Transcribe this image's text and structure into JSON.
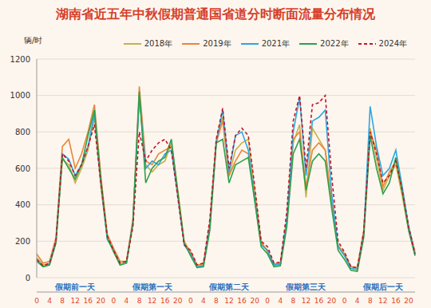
{
  "chart_data": {
    "type": "line",
    "title": "湖南省近五年中秋假期普通国省道分时断面流量分布情况",
    "ylabel": "辆/时",
    "x_groups": [
      "假期前一天",
      "假期第一天",
      "假期第二天",
      "假期第三天",
      "假期后一天"
    ],
    "categories": [
      "0",
      null,
      "4",
      null,
      "8",
      null,
      "12",
      null,
      "16",
      null,
      "20",
      null,
      "0",
      null,
      "4",
      null,
      "8",
      null,
      "12",
      null,
      "16",
      null,
      "20",
      null,
      "0",
      null,
      "4",
      null,
      "8",
      null,
      "12",
      null,
      "16",
      null,
      "20",
      null,
      "0",
      null,
      "4",
      null,
      "8",
      null,
      "12",
      null,
      "16",
      null,
      "20",
      null,
      "0",
      null,
      "4",
      null,
      "8",
      null,
      "12",
      null,
      "16",
      null,
      "20",
      null
    ],
    "ylim": [
      0,
      1200
    ],
    "yticks": [
      0,
      200,
      400,
      600,
      800,
      1000,
      1200
    ],
    "grid": true,
    "legend": "top",
    "series": [
      {
        "name": "2018年",
        "color": "#c9b04a",
        "line_style": "solid",
        "values": [
          110,
          70,
          80,
          200,
          650,
          620,
          520,
          600,
          700,
          880,
          500,
          220,
          150,
          80,
          90,
          300,
          1000,
          620,
          580,
          620,
          640,
          740,
          480,
          200,
          140,
          70,
          70,
          300,
          760,
          880,
          560,
          700,
          740,
          760,
          480,
          200,
          140,
          70,
          70,
          300,
          740,
          840,
          440,
          820,
          760,
          700,
          420,
          180,
          130,
          60,
          50,
          250,
          820,
          650,
          480,
          560,
          620,
          450,
          260,
          130
        ]
      },
      {
        "name": "2019年",
        "color": "#e8863a",
        "line_style": "solid",
        "values": [
          130,
          80,
          90,
          220,
          720,
          760,
          600,
          680,
          800,
          950,
          560,
          240,
          160,
          90,
          90,
          320,
          1050,
          640,
          620,
          680,
          700,
          720,
          460,
          190,
          140,
          70,
          75,
          300,
          740,
          860,
          560,
          640,
          700,
          680,
          440,
          190,
          150,
          75,
          80,
          320,
          760,
          800,
          500,
          700,
          740,
          700,
          400,
          170,
          130,
          60,
          55,
          260,
          800,
          700,
          500,
          580,
          640,
          480,
          280,
          140
        ]
      },
      {
        "name": "2021年",
        "color": "#2aa7e0",
        "line_style": "solid",
        "values": [
          100,
          60,
          75,
          200,
          680,
          650,
          560,
          620,
          720,
          900,
          520,
          210,
          150,
          70,
          80,
          300,
          1000,
          600,
          640,
          620,
          680,
          700,
          450,
          180,
          130,
          60,
          65,
          280,
          740,
          920,
          580,
          780,
          800,
          700,
          430,
          180,
          150,
          70,
          75,
          320,
          800,
          990,
          560,
          860,
          880,
          920,
          460,
          170,
          120,
          50,
          45,
          240,
          940,
          720,
          560,
          600,
          700,
          500,
          280,
          130
        ]
      },
      {
        "name": "2022年",
        "color": "#2ca04c",
        "line_style": "solid",
        "values": [
          90,
          60,
          70,
          190,
          660,
          600,
          540,
          620,
          780,
          920,
          540,
          220,
          140,
          70,
          80,
          300,
          1020,
          520,
          600,
          640,
          660,
          760,
          470,
          190,
          120,
          55,
          60,
          260,
          740,
          760,
          520,
          620,
          640,
          660,
          420,
          170,
          130,
          60,
          65,
          280,
          680,
          760,
          480,
          640,
          680,
          640,
          380,
          150,
          100,
          40,
          35,
          220,
          780,
          600,
          460,
          520,
          660,
          470,
          260,
          120
        ]
      },
      {
        "name": "2024年",
        "color": "#c0152a",
        "line_style": "dashed",
        "values": [
          100,
          65,
          80,
          200,
          680,
          640,
          560,
          620,
          720,
          840,
          520,
          230,
          150,
          80,
          90,
          280,
          800,
          640,
          700,
          740,
          760,
          700,
          440,
          180,
          150,
          70,
          80,
          320,
          760,
          930,
          600,
          780,
          820,
          780,
          500,
          200,
          170,
          80,
          85,
          360,
          860,
          1000,
          600,
          950,
          960,
          1000,
          560,
          200,
          140,
          60,
          55,
          250,
          800,
          680,
          520,
          560,
          640,
          480,
          280,
          130
        ]
      }
    ]
  }
}
